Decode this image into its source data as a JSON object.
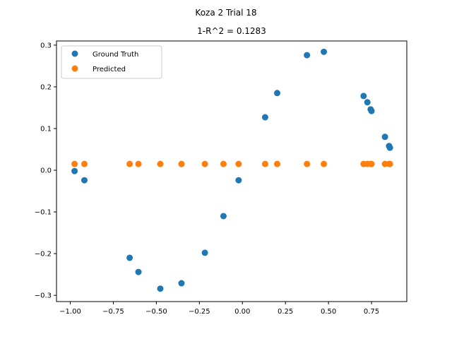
{
  "chart_data": {
    "type": "scatter",
    "suptitle": "Koza 2 Trial 18",
    "title": "1-R^2 = 0.1283",
    "xlabel": "",
    "ylabel": "",
    "xlim": [
      -1.08,
      0.955
    ],
    "ylim": [
      -0.315,
      0.31
    ],
    "x_ticks": [
      -1.0,
      -0.75,
      -0.5,
      -0.25,
      0.0,
      0.25,
      0.5,
      0.75
    ],
    "x_tick_labels": [
      "−1.00",
      "−0.75",
      "−0.50",
      "−0.25",
      "0.00",
      "0.25",
      "0.50",
      "0.75"
    ],
    "y_ticks": [
      -0.3,
      -0.2,
      -0.1,
      0.0,
      0.1,
      0.2,
      0.3
    ],
    "y_tick_labels": [
      "−0.3",
      "−0.2",
      "−0.1",
      "0.0",
      "0.1",
      "0.2",
      "0.3"
    ],
    "grid": false,
    "legend_position": "upper-left",
    "series": [
      {
        "name": "Ground Truth",
        "color": "#1f77b4",
        "points": [
          [
            -0.975,
            -0.002
          ],
          [
            -0.918,
            -0.024
          ],
          [
            -0.655,
            -0.21
          ],
          [
            -0.604,
            -0.244
          ],
          [
            -0.477,
            -0.284
          ],
          [
            -0.354,
            -0.271
          ],
          [
            -0.218,
            -0.198
          ],
          [
            -0.11,
            -0.11
          ],
          [
            -0.022,
            -0.024
          ],
          [
            0.132,
            0.127
          ],
          [
            0.202,
            0.185
          ],
          [
            0.375,
            0.276
          ],
          [
            0.473,
            0.284
          ],
          [
            0.704,
            0.178
          ],
          [
            0.726,
            0.163
          ],
          [
            0.745,
            0.146
          ],
          [
            0.75,
            0.142
          ],
          [
            0.828,
            0.08
          ],
          [
            0.852,
            0.058
          ],
          [
            0.857,
            0.054
          ]
        ]
      },
      {
        "name": "Predicted",
        "color": "#ff7f0e",
        "points": [
          [
            -0.975,
            0.015
          ],
          [
            -0.918,
            0.015
          ],
          [
            -0.655,
            0.015
          ],
          [
            -0.604,
            0.015
          ],
          [
            -0.477,
            0.015
          ],
          [
            -0.354,
            0.015
          ],
          [
            -0.218,
            0.015
          ],
          [
            -0.11,
            0.015
          ],
          [
            -0.022,
            0.015
          ],
          [
            0.132,
            0.015
          ],
          [
            0.202,
            0.015
          ],
          [
            0.375,
            0.015
          ],
          [
            0.473,
            0.015
          ],
          [
            0.704,
            0.015
          ],
          [
            0.726,
            0.015
          ],
          [
            0.745,
            0.015
          ],
          [
            0.75,
            0.015
          ],
          [
            0.828,
            0.015
          ],
          [
            0.852,
            0.015
          ],
          [
            0.857,
            0.015
          ]
        ]
      }
    ]
  }
}
